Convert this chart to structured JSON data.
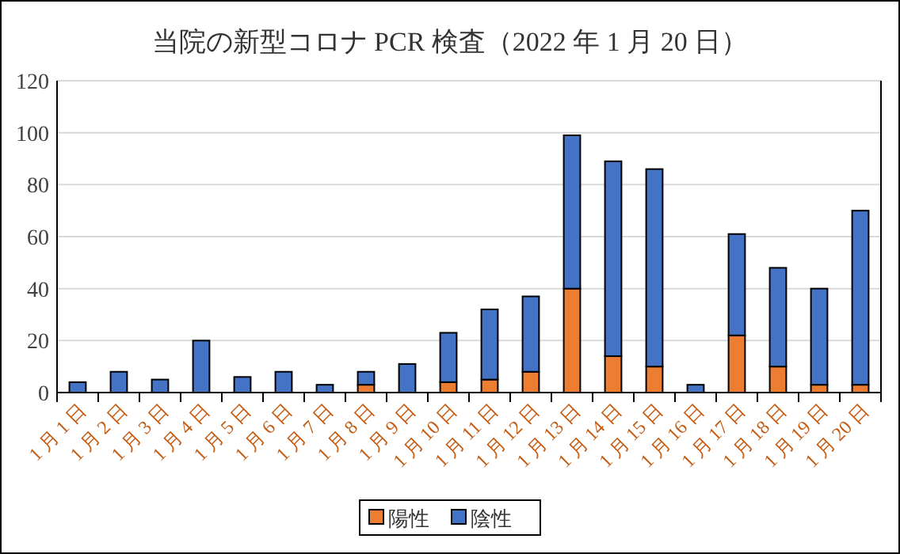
{
  "chart_data": {
    "type": "bar",
    "title": "当院の新型コロナ PCR 検査（2022 年 1 月 20 日）",
    "stacked": true,
    "categories": [
      "1 月 1 日",
      "1 月 2 日",
      "1 月 3 日",
      "1 月 4 日",
      "1 月 5 日",
      "1 月 6 日",
      "1 月 7 日",
      "1 月 8 日",
      "1 月 9 日",
      "1 月 10 日",
      "1 月 11 日",
      "1 月 12 日",
      "1 月 13 日",
      "1 月 14 日",
      "1 月 15 日",
      "1 月 16 日",
      "1 月 17 日",
      "1 月 18 日",
      "1 月 19 日",
      "1 月 20 日"
    ],
    "series": [
      {
        "name": "陽性",
        "color": "#ed7d31",
        "values": [
          0,
          0,
          0,
          0,
          0,
          0,
          0,
          3,
          0,
          4,
          5,
          8,
          40,
          14,
          10,
          0,
          22,
          10,
          3,
          3
        ]
      },
      {
        "name": "陰性",
        "color": "#4472c4",
        "values": [
          4,
          8,
          5,
          20,
          6,
          8,
          3,
          5,
          11,
          19,
          27,
          29,
          59,
          75,
          76,
          3,
          39,
          38,
          37,
          67
        ]
      }
    ],
    "ylim": [
      0,
      120
    ],
    "yticks": [
      0,
      20,
      40,
      60,
      80,
      100,
      120
    ],
    "grid": "y",
    "legend": "bottom"
  }
}
